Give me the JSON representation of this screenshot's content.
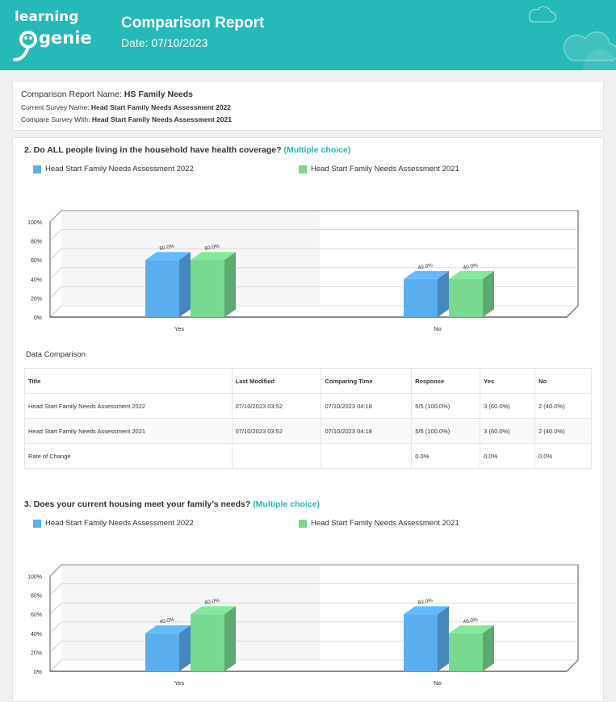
{
  "header": {
    "logo_text_top": "learning",
    "logo_text_bottom": "genie",
    "title": "Comparison Report",
    "date": "Date: 07/10/2023",
    "bg_color": "#25b9b7"
  },
  "info": {
    "report_name_label": "Comparison Report Name: ",
    "report_name": "HS Family Needs",
    "current_label": "Current Survey Name: ",
    "current": "Head Start Family Needs Assessment 2022",
    "compare_label": "Compare Survey With: ",
    "compare": "Head Start Family Needs Assessment 2021"
  },
  "legend": {
    "series_a": "Head Start Family Needs Assessment 2022",
    "series_b": "Head Start Family Needs Assessment 2021",
    "color_a": "#5aaeee",
    "color_b": "#78d98f"
  },
  "questions": [
    {
      "title": "2. Do ALL people living in the household have health coverage? ",
      "type": "(Multiple choice)"
    },
    {
      "title": "3. Does your current housing meet your family’s needs? ",
      "type": "(Multiple choice)"
    }
  ],
  "data_comparison": {
    "title": "Data Comparison",
    "columns": [
      "Title",
      "Last Modified",
      "Comparing Time",
      "Response",
      "Yes",
      "No"
    ],
    "rows": [
      [
        "Head Start Family Needs Assessment 2022",
        "07/10/2023 03:52",
        "07/10/2023 04:18",
        "5/5 (100.0%)",
        "3 (60.0%)",
        "2 (40.0%)"
      ],
      [
        "Head Start Family Needs Assessment 2021",
        "07/10/2023 03:52",
        "07/10/2023 04:18",
        "5/5 (100.0%)",
        "3 (60.0%)",
        "2 (40.0%)"
      ],
      [
        "Rate of Change",
        "",
        "",
        "0.0%",
        "0.0%",
        "0.0%"
      ]
    ]
  },
  "chart_data": [
    {
      "type": "bar",
      "categories": [
        "Yes",
        "No"
      ],
      "series": [
        {
          "name": "Head Start Family Needs Assessment 2022",
          "values": [
            60.0,
            40.0
          ],
          "labels": [
            "60.0%",
            "40.0%"
          ]
        },
        {
          "name": "Head Start Family Needs Assessment 2021",
          "values": [
            60.0,
            40.0
          ],
          "labels": [
            "60.0%",
            "40.0%"
          ]
        }
      ],
      "yticks": [
        "0%",
        "20%",
        "40%",
        "60%",
        "80%",
        "100%"
      ],
      "ylim": [
        0,
        100
      ],
      "grid": true,
      "legend": "top"
    },
    {
      "type": "bar",
      "categories": [
        "Yes",
        "No"
      ],
      "series": [
        {
          "name": "Head Start Family Needs Assessment 2022",
          "values": [
            40.0,
            60.0
          ],
          "labels": [
            "40.0%",
            "60.0%"
          ]
        },
        {
          "name": "Head Start Family Needs Assessment 2021",
          "values": [
            60.0,
            40.0
          ],
          "labels": [
            "60.0%",
            "40.0%"
          ]
        }
      ],
      "yticks": [
        "0%",
        "20%",
        "40%",
        "60%",
        "80%",
        "100%"
      ],
      "ylim": [
        0,
        100
      ],
      "grid": true,
      "legend": "top"
    }
  ]
}
